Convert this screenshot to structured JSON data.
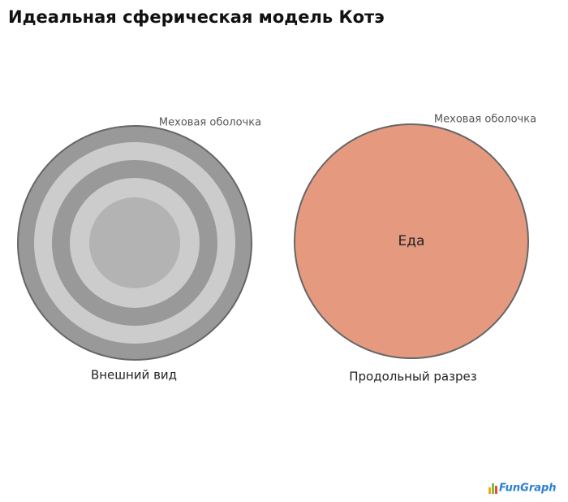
{
  "header": {
    "title": "Идеальная сферическая модель Котэ"
  },
  "panels": [
    {
      "annotation": "Меховая оболочка",
      "caption": "Внешний вид"
    },
    {
      "annotation": "Меховая оболочка",
      "center_label": "Еда",
      "caption": "Продольный разрез"
    }
  ],
  "footer": {
    "logo": "FunGraph"
  }
}
